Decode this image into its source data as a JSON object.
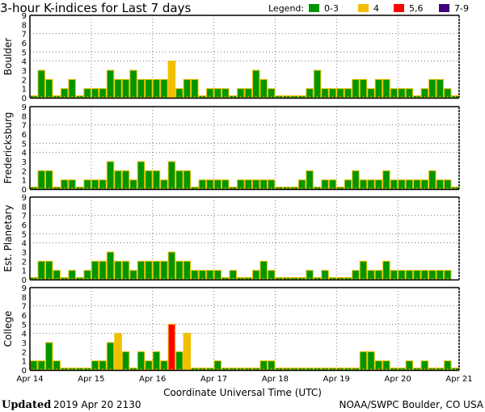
{
  "chart_data": {
    "type": "bar",
    "title": "3-hour K-indices for Last 7 days",
    "xlabel": "Coordinate Universal Time (UTC)",
    "x_tick_labels": [
      "Apr 14",
      "Apr 15",
      "Apr 16",
      "Apr 17",
      "Apr 18",
      "Apr 19",
      "Apr 20",
      "Apr 21"
    ],
    "y_tick_labels": [
      "0",
      "1",
      "2",
      "3",
      "4",
      "5",
      "6",
      "7",
      "8",
      "9"
    ],
    "ylim": [
      0,
      9
    ],
    "bars_per_day": 8,
    "legend": {
      "label": "Legend:",
      "placement": "top-right",
      "entries": [
        {
          "label": "0-3",
          "color": "#009600"
        },
        {
          "label": "4",
          "color": "#f0c000"
        },
        {
          "label": "5,6",
          "color": "#ff0000"
        },
        {
          "label": "7-9",
          "color": "#400080"
        }
      ]
    },
    "border_color": "#f0c000",
    "panels": [
      {
        "name": "Boulder",
        "values": [
          0,
          3,
          2,
          0,
          1,
          2,
          0,
          1,
          1,
          1,
          3,
          2,
          2,
          3,
          2,
          2,
          2,
          2,
          4,
          1,
          2,
          2,
          0,
          1,
          1,
          1,
          0,
          1,
          1,
          3,
          2,
          1,
          0,
          0,
          0,
          0,
          1,
          3,
          1,
          1,
          1,
          1,
          2,
          2,
          1,
          2,
          2,
          1,
          1,
          1,
          0,
          1,
          2,
          2,
          1,
          0
        ]
      },
      {
        "name": "Fredericksburg",
        "values": [
          0,
          2,
          2,
          0,
          1,
          1,
          0,
          1,
          1,
          1,
          3,
          2,
          2,
          1,
          3,
          2,
          2,
          1,
          3,
          2,
          2,
          0,
          1,
          1,
          1,
          1,
          0,
          1,
          1,
          1,
          1,
          1,
          0,
          0,
          0,
          1,
          2,
          0,
          1,
          1,
          0,
          1,
          2,
          1,
          1,
          1,
          2,
          1,
          1,
          1,
          1,
          1,
          2,
          1,
          1,
          0
        ]
      },
      {
        "name": "Est. Planetary",
        "values": [
          0,
          2,
          2,
          1,
          0,
          1,
          0,
          1,
          2,
          2,
          3,
          2,
          2,
          1,
          2,
          2,
          2,
          2,
          3,
          2,
          2,
          1,
          1,
          1,
          1,
          0,
          1,
          0,
          0,
          1,
          2,
          1,
          0,
          0,
          0,
          0,
          1,
          0,
          1,
          0,
          0,
          0,
          1,
          2,
          1,
          1,
          2,
          1,
          1,
          1,
          1,
          1,
          1,
          1,
          1,
          null
        ]
      },
      {
        "name": "College",
        "values": [
          1,
          1,
          3,
          1,
          0,
          0,
          0,
          0,
          1,
          1,
          3,
          4,
          2,
          0,
          2,
          1,
          2,
          1,
          5,
          2,
          4,
          0,
          0,
          0,
          1,
          0,
          0,
          0,
          0,
          0,
          1,
          1,
          0,
          0,
          0,
          0,
          0,
          0,
          0,
          0,
          0,
          0,
          0,
          2,
          2,
          1,
          1,
          0,
          0,
          1,
          0,
          1,
          0,
          0,
          1,
          0
        ]
      }
    ]
  },
  "footer": {
    "updated_label": "Updated",
    "updated_value": "2019 Apr 20 2130",
    "credit": "NOAA/SWPC Boulder, CO USA"
  }
}
